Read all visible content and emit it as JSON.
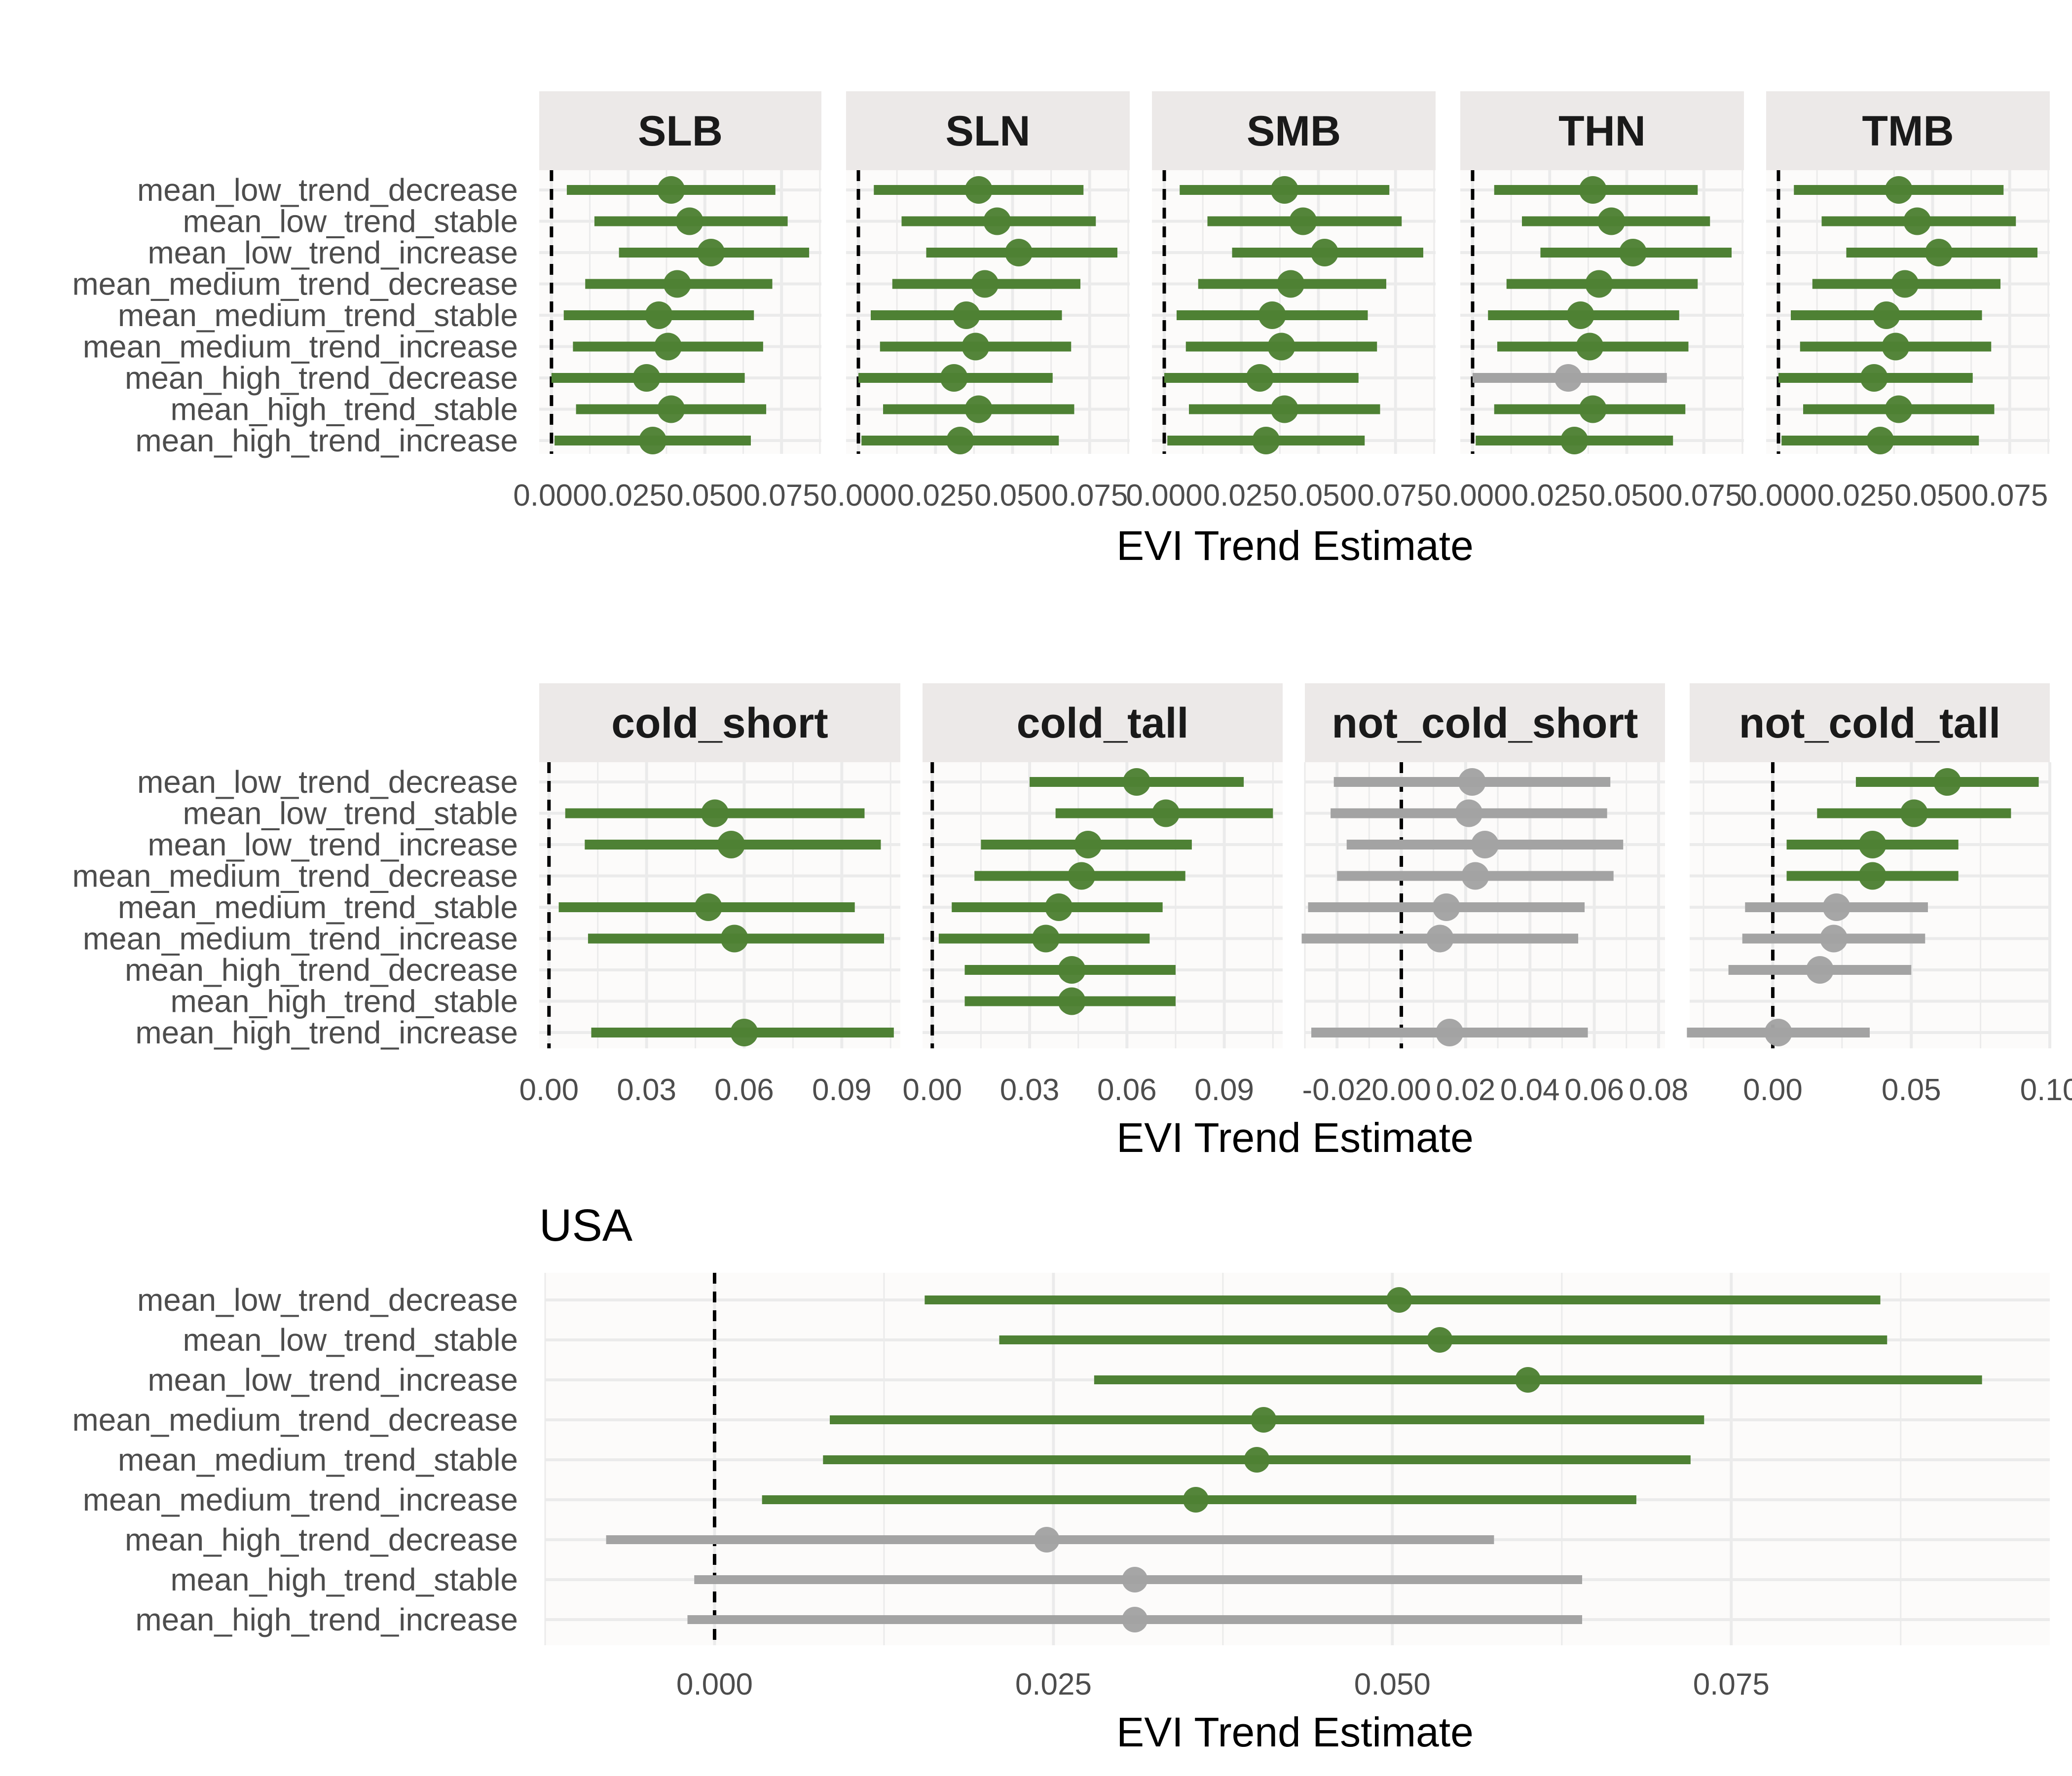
{
  "colors": {
    "significant": "#4e8134",
    "not_significant": "#a3a3a3",
    "panel_bg": "#fcfbfa",
    "strip_bg": "#ece9e8",
    "grid": "#ebebeb",
    "zero_line": "#000000"
  },
  "chart_data": [
    {
      "type": "forest",
      "title": "",
      "xlabel": "EVI Trend Estimate",
      "categories": [
        "mean_low_trend_decrease",
        "mean_low_trend_stable",
        "mean_low_trend_increase",
        "mean_medium_trend_decrease",
        "mean_medium_trend_stable",
        "mean_medium_trend_increase",
        "mean_high_trend_decrease",
        "mean_high_trend_stable",
        "mean_high_trend_increase"
      ],
      "panels": [
        {
          "name": "SLB",
          "xlim": [
            -0.004,
            0.088
          ],
          "xticks": [
            0.0,
            0.025,
            0.05,
            0.075
          ],
          "xtick_labels": [
            "0.000",
            "0.025",
            "0.050",
            "0.075"
          ],
          "estimates": [
            0.039,
            0.045,
            0.052,
            0.041,
            0.035,
            0.038,
            0.031,
            0.039,
            0.033
          ],
          "lower": [
            0.005,
            0.014,
            0.022,
            0.011,
            0.004,
            0.007,
            0.0,
            0.008,
            0.001
          ],
          "upper": [
            0.073,
            0.077,
            0.084,
            0.072,
            0.066,
            0.069,
            0.063,
            0.07,
            0.065
          ],
          "significant": [
            true,
            true,
            true,
            true,
            true,
            true,
            true,
            true,
            true
          ]
        },
        {
          "name": "SLN",
          "xlim": [
            -0.004,
            0.088
          ],
          "xticks": [
            0.0,
            0.025,
            0.05,
            0.075
          ],
          "xtick_labels": [
            "0.000",
            "0.025",
            "0.050",
            "0.075"
          ],
          "estimates": [
            0.039,
            0.045,
            0.052,
            0.041,
            0.035,
            0.038,
            0.031,
            0.039,
            0.033
          ],
          "lower": [
            0.005,
            0.014,
            0.022,
            0.011,
            0.004,
            0.007,
            0.0,
            0.008,
            0.001
          ],
          "upper": [
            0.073,
            0.077,
            0.084,
            0.072,
            0.066,
            0.069,
            0.063,
            0.07,
            0.065
          ],
          "significant": [
            true,
            true,
            true,
            true,
            true,
            true,
            true,
            true,
            true
          ]
        },
        {
          "name": "SMB",
          "xlim": [
            -0.004,
            0.088
          ],
          "xticks": [
            0.0,
            0.025,
            0.05,
            0.075
          ],
          "xtick_labels": [
            "0.000",
            "0.025",
            "0.050",
            "0.075"
          ],
          "estimates": [
            0.039,
            0.045,
            0.052,
            0.041,
            0.035,
            0.038,
            0.031,
            0.039,
            0.033
          ],
          "lower": [
            0.005,
            0.014,
            0.022,
            0.011,
            0.004,
            0.007,
            0.0,
            0.008,
            0.001
          ],
          "upper": [
            0.073,
            0.077,
            0.084,
            0.072,
            0.066,
            0.069,
            0.063,
            0.07,
            0.065
          ],
          "significant": [
            true,
            true,
            true,
            true,
            true,
            true,
            true,
            true,
            true
          ]
        },
        {
          "name": "THN",
          "xlim": [
            -0.004,
            0.088
          ],
          "xticks": [
            0.0,
            0.025,
            0.05,
            0.075
          ],
          "xtick_labels": [
            "0.000",
            "0.025",
            "0.050",
            "0.075"
          ],
          "estimates": [
            0.039,
            0.045,
            0.052,
            0.041,
            0.035,
            0.038,
            0.031,
            0.039,
            0.033
          ],
          "lower": [
            0.007,
            0.016,
            0.022,
            0.011,
            0.005,
            0.008,
            0.0,
            0.007,
            0.001
          ],
          "upper": [
            0.073,
            0.077,
            0.084,
            0.073,
            0.067,
            0.07,
            0.063,
            0.069,
            0.065
          ],
          "significant": [
            true,
            true,
            true,
            true,
            true,
            true,
            false,
            true,
            true
          ]
        },
        {
          "name": "TMB",
          "xlim": [
            -0.004,
            0.088
          ],
          "xticks": [
            0.0,
            0.025,
            0.05,
            0.075
          ],
          "xtick_labels": [
            "0.000",
            "0.025",
            "0.050",
            "0.075"
          ],
          "estimates": [
            0.039,
            0.045,
            0.052,
            0.041,
            0.035,
            0.038,
            0.031,
            0.039,
            0.033
          ],
          "lower": [
            0.005,
            0.014,
            0.022,
            0.011,
            0.004,
            0.007,
            0.0,
            0.008,
            0.001
          ],
          "upper": [
            0.073,
            0.077,
            0.084,
            0.072,
            0.066,
            0.069,
            0.063,
            0.07,
            0.065
          ],
          "significant": [
            true,
            true,
            true,
            true,
            true,
            true,
            true,
            true,
            true
          ]
        }
      ]
    },
    {
      "type": "forest",
      "title": "",
      "xlabel": "EVI Trend Estimate",
      "categories": [
        "mean_low_trend_decrease",
        "mean_low_trend_stable",
        "mean_low_trend_increase",
        "mean_medium_trend_decrease",
        "mean_medium_trend_stable",
        "mean_medium_trend_increase",
        "mean_high_trend_decrease",
        "mean_high_trend_stable",
        "mean_high_trend_increase"
      ],
      "panels": [
        {
          "name": "cold_short",
          "xlim": [
            -0.003,
            0.108
          ],
          "xticks": [
            0.0,
            0.03,
            0.06,
            0.09
          ],
          "xtick_labels": [
            "0.00",
            "0.03",
            "0.06",
            "0.09"
          ],
          "estimates": [
            null,
            0.051,
            0.056,
            null,
            0.049,
            0.057,
            null,
            null,
            0.06
          ],
          "lower": [
            null,
            0.005,
            0.011,
            null,
            0.003,
            0.012,
            null,
            null,
            0.013
          ],
          "upper": [
            null,
            0.097,
            0.102,
            null,
            0.094,
            0.103,
            null,
            null,
            0.106
          ],
          "significant": [
            null,
            true,
            true,
            null,
            true,
            true,
            null,
            null,
            true
          ]
        },
        {
          "name": "cold_tall",
          "xlim": [
            -0.003,
            0.108
          ],
          "xticks": [
            0.0,
            0.03,
            0.06,
            0.09
          ],
          "xtick_labels": [
            "0.00",
            "0.03",
            "0.06",
            "0.09"
          ],
          "estimates": [
            0.063,
            0.072,
            0.048,
            0.046,
            0.039,
            0.035,
            0.043,
            0.043,
            null
          ],
          "lower": [
            0.03,
            0.038,
            0.015,
            0.013,
            0.006,
            0.002,
            0.01,
            0.01,
            null
          ],
          "upper": [
            0.096,
            0.105,
            0.08,
            0.078,
            0.071,
            0.067,
            0.075,
            0.075,
            null
          ],
          "significant": [
            true,
            true,
            true,
            true,
            true,
            true,
            true,
            true,
            null
          ]
        },
        {
          "name": "not_cold_short",
          "xlim": [
            -0.03,
            0.082
          ],
          "xticks": [
            -0.02,
            0.0,
            0.02,
            0.04,
            0.06,
            0.08
          ],
          "xtick_labels": [
            "-0.02",
            "0.00",
            "0.02",
            "0.04",
            "0.06",
            "0.08"
          ],
          "estimates": [
            0.022,
            0.021,
            0.026,
            0.023,
            0.014,
            0.012,
            null,
            null,
            0.015
          ],
          "lower": [
            -0.021,
            -0.022,
            -0.017,
            -0.02,
            -0.029,
            -0.031,
            null,
            null,
            -0.028
          ],
          "upper": [
            0.065,
            0.064,
            0.069,
            0.066,
            0.057,
            0.055,
            null,
            null,
            0.058
          ],
          "significant": [
            false,
            false,
            false,
            false,
            false,
            false,
            null,
            null,
            false
          ]
        },
        {
          "name": "not_cold_tall",
          "xlim": [
            -0.03,
            0.1
          ],
          "xticks": [
            0.0,
            0.05,
            0.1
          ],
          "xtick_labels": [
            "0.00",
            "0.05",
            "0.10"
          ],
          "estimates": [
            0.063,
            0.051,
            0.036,
            0.036,
            0.023,
            0.022,
            0.017,
            null,
            0.002
          ],
          "lower": [
            0.03,
            0.016,
            0.005,
            0.005,
            -0.01,
            -0.011,
            -0.016,
            null,
            -0.031
          ],
          "upper": [
            0.096,
            0.086,
            0.067,
            0.067,
            0.056,
            0.055,
            0.05,
            null,
            0.035
          ],
          "significant": [
            true,
            true,
            true,
            true,
            false,
            false,
            false,
            null,
            false
          ]
        }
      ]
    },
    {
      "type": "forest",
      "title": "USA",
      "xlabel": "EVI Trend Estimate",
      "categories": [
        "mean_low_trend_decrease",
        "mean_low_trend_stable",
        "mean_low_trend_increase",
        "mean_medium_trend_decrease",
        "mean_medium_trend_stable",
        "mean_medium_trend_increase",
        "mean_high_trend_decrease",
        "mean_high_trend_stable",
        "mean_high_trend_increase"
      ],
      "panels": [
        {
          "name": "",
          "xlim": [
            -0.0125,
            0.0985
          ],
          "xticks": [
            0.0,
            0.025,
            0.05,
            0.075
          ],
          "xtick_labels": [
            "0.000",
            "0.025",
            "0.050",
            "0.075"
          ],
          "estimates": [
            0.0505,
            0.0535,
            0.06,
            0.0405,
            0.04,
            0.0355,
            0.0245,
            0.031,
            0.031
          ],
          "lower": [
            0.0155,
            0.021,
            0.028,
            0.0085,
            0.008,
            0.0035,
            -0.008,
            -0.0015,
            -0.002
          ],
          "upper": [
            0.086,
            0.0865,
            0.0935,
            0.073,
            0.072,
            0.068,
            0.0575,
            0.064,
            0.064
          ],
          "significant": [
            true,
            true,
            true,
            true,
            true,
            true,
            false,
            false,
            false
          ]
        }
      ]
    }
  ]
}
